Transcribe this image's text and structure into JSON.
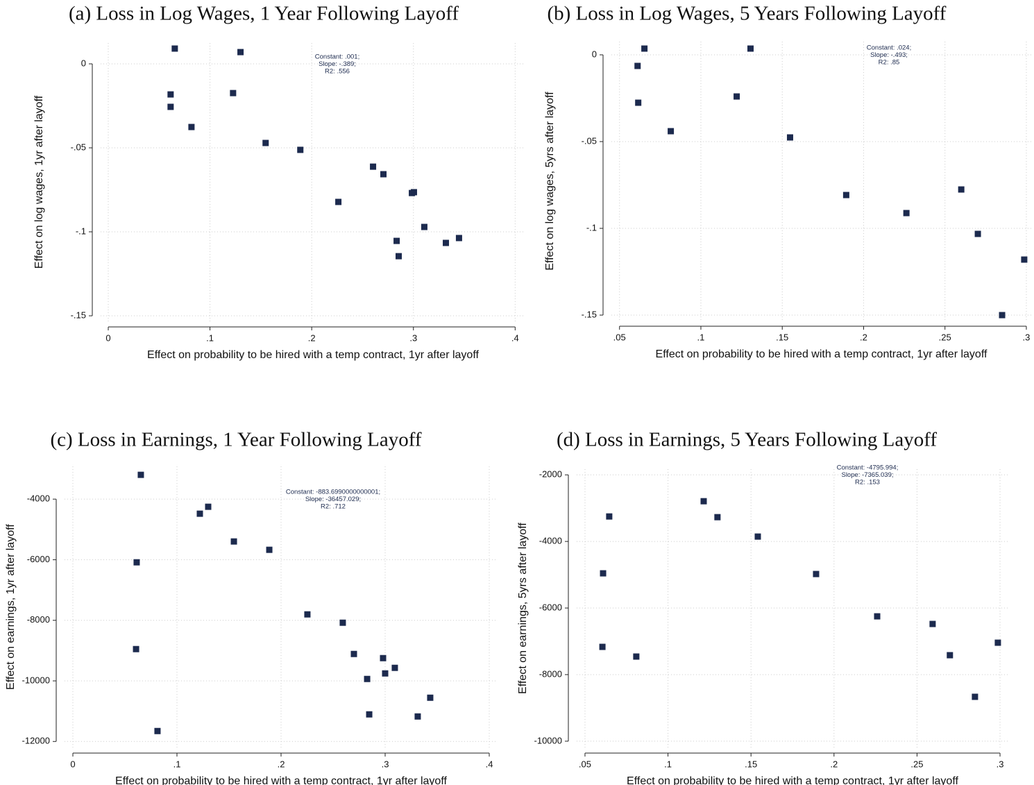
{
  "chart_data": [
    {
      "type": "scatter",
      "title": "(a) Loss in Log Wages, 1 Year Following Layoff",
      "x_label": "Effect on probability to be hired with a temp contract, 1yr after layoff",
      "y_label": "Effect on log wages, 1yr after layoff",
      "annotation": [
        "Constant: .001;",
        "Slope: -.389;",
        "R2: .556"
      ],
      "color": "#1c2a4e",
      "marker": "square",
      "grid": true,
      "x": [
        0.0654,
        0.13,
        0.0613,
        0.0613,
        0.1227,
        0.0818,
        0.1547,
        0.1888,
        0.2603,
        0.2705,
        0.2262,
        0.3005,
        0.2985,
        0.3107,
        0.2835,
        0.2855,
        0.3319,
        0.3448
      ],
      "values": [
        0.0091,
        0.007,
        -0.0182,
        -0.0256,
        -0.0174,
        -0.0376,
        -0.0471,
        -0.0512,
        -0.0612,
        -0.0657,
        -0.0822,
        -0.0764,
        -0.0769,
        -0.0971,
        -0.1054,
        -0.1145,
        -0.1066,
        -0.1037
      ],
      "xlim": [
        -0.0075,
        0.41
      ],
      "ylim": [
        -0.1533,
        0.0124
      ],
      "xticks": [
        0,
        {
          "value": 0.1,
          "label": ".1"
        },
        {
          "value": 0.2,
          "label": ".2"
        },
        {
          "value": 0.3,
          "label": ".3"
        },
        {
          "value": 0.4,
          "label": ".4"
        }
      ],
      "yticks": [
        0,
        {
          "value": -0.05,
          "label": "-.05"
        },
        {
          "value": -0.1,
          "label": "-.1"
        },
        {
          "value": -0.15,
          "label": "-.15"
        }
      ]
    },
    {
      "type": "scatter",
      "title": "(b) Loss in Log Wages, 5 Years Following Layoff",
      "x_label": "Effect on probability to be hired with a temp contract, 1yr after layoff",
      "y_label": "Effect on log wages, 5yrs after layoff",
      "annotation": [
        "Constant: .024;",
        "Slope: -.493;",
        "R2: .85"
      ],
      "color": "#1c2a4e",
      "marker": "square",
      "grid": true,
      "x": [
        0.0653,
        0.1305,
        0.0611,
        0.0615,
        0.122,
        0.0815,
        0.1548,
        0.1893,
        0.2263,
        0.26,
        0.2702,
        0.2987,
        0.2851
      ],
      "values": [
        0.0036,
        0.0036,
        -0.0064,
        -0.0276,
        -0.024,
        -0.044,
        -0.0476,
        -0.0808,
        -0.0912,
        -0.0776,
        -0.1032,
        -0.118,
        -0.15
      ],
      "xlim": [
        0.045,
        0.303
      ],
      "ylim": [
        -0.1532,
        0.0076
      ],
      "xticks": [
        {
          "value": 0.05,
          "label": ".05"
        },
        {
          "value": 0.1,
          "label": ".1"
        },
        {
          "value": 0.15,
          "label": ".15"
        },
        {
          "value": 0.2,
          "label": ".2"
        },
        {
          "value": 0.25,
          "label": ".25"
        },
        {
          "value": 0.3,
          "label": ".3"
        }
      ],
      "yticks": [
        0,
        {
          "value": -0.05,
          "label": "-.05"
        },
        {
          "value": -0.1,
          "label": "-.1"
        },
        {
          "value": -0.15,
          "label": "-.15"
        }
      ]
    },
    {
      "type": "scatter",
      "title": "(c) Loss in Earnings, 1 Year Following Layoff",
      "x_label": "Effect on probability to be hired with a temp contract, 1yr after layoff",
      "y_label": "Effect on earnings, 1yr after layoff",
      "annotation": [
        "Constant: -883.6990000000001;",
        "Slope: -36457.029;",
        "R2: .712"
      ],
      "color": "#1c2a4e",
      "marker": "square",
      "grid": true,
      "x": [
        0.0653,
        0.122,
        0.13,
        0.0613,
        0.1547,
        0.1887,
        0.0607,
        0.0813,
        0.2253,
        0.2593,
        0.27,
        0.298,
        0.3093,
        0.3,
        0.2827,
        0.2847,
        0.3313,
        0.3433
      ],
      "values": [
        -3198,
        -4481,
        -4252,
        -6086,
        -5398,
        -5673,
        -8951,
        -11656,
        -7805,
        -8080,
        -9112,
        -9249,
        -9570,
        -9754,
        -9937,
        -11106,
        -11175,
        -10556
      ],
      "xlim": [
        -0.008,
        0.408
      ],
      "ylim": [
        -12200,
        -2920
      ],
      "xticks": [
        0,
        {
          "value": 0.1,
          "label": ".1"
        },
        {
          "value": 0.2,
          "label": ".2"
        },
        {
          "value": 0.3,
          "label": ".3"
        },
        {
          "value": 0.4,
          "label": ".4"
        }
      ],
      "yticks": [
        -4000,
        -6000,
        -8000,
        -10000,
        -12000
      ]
    },
    {
      "type": "scatter",
      "title": "(d) Loss in Earnings, 5 Years Following Layoff",
      "x_label": "Effect on probability to be hired with a temp contract, 1yr after layoff",
      "y_label": "Effect on earnings, 5yrs after layoff",
      "annotation": [
        "Constant: -4795.994;",
        "Slope: -7365.039;",
        "R2: .153"
      ],
      "color": "#1c2a4e",
      "marker": "square",
      "grid": true,
      "x": [
        0.0646,
        0.1215,
        0.1298,
        0.0609,
        0.1541,
        0.1892,
        0.0605,
        0.0809,
        0.226,
        0.2594,
        0.2698,
        0.2987,
        0.2849
      ],
      "values": [
        -3250,
        -2792,
        -3271,
        -4958,
        -3854,
        -4979,
        -7167,
        -7458,
        -6250,
        -6479,
        -7417,
        -7042,
        -8667
      ],
      "xlim": [
        0.045,
        0.305
      ],
      "ylim": [
        -10190,
        -1830
      ],
      "xticks": [
        {
          "value": 0.05,
          "label": ".05"
        },
        {
          "value": 0.1,
          "label": ".1"
        },
        {
          "value": 0.15,
          "label": ".15"
        },
        {
          "value": 0.2,
          "label": ".2"
        },
        {
          "value": 0.25,
          "label": ".25"
        },
        {
          "value": 0.3,
          "label": ".3"
        }
      ],
      "yticks": [
        -2000,
        -4000,
        -6000,
        -8000,
        -10000
      ]
    }
  ]
}
